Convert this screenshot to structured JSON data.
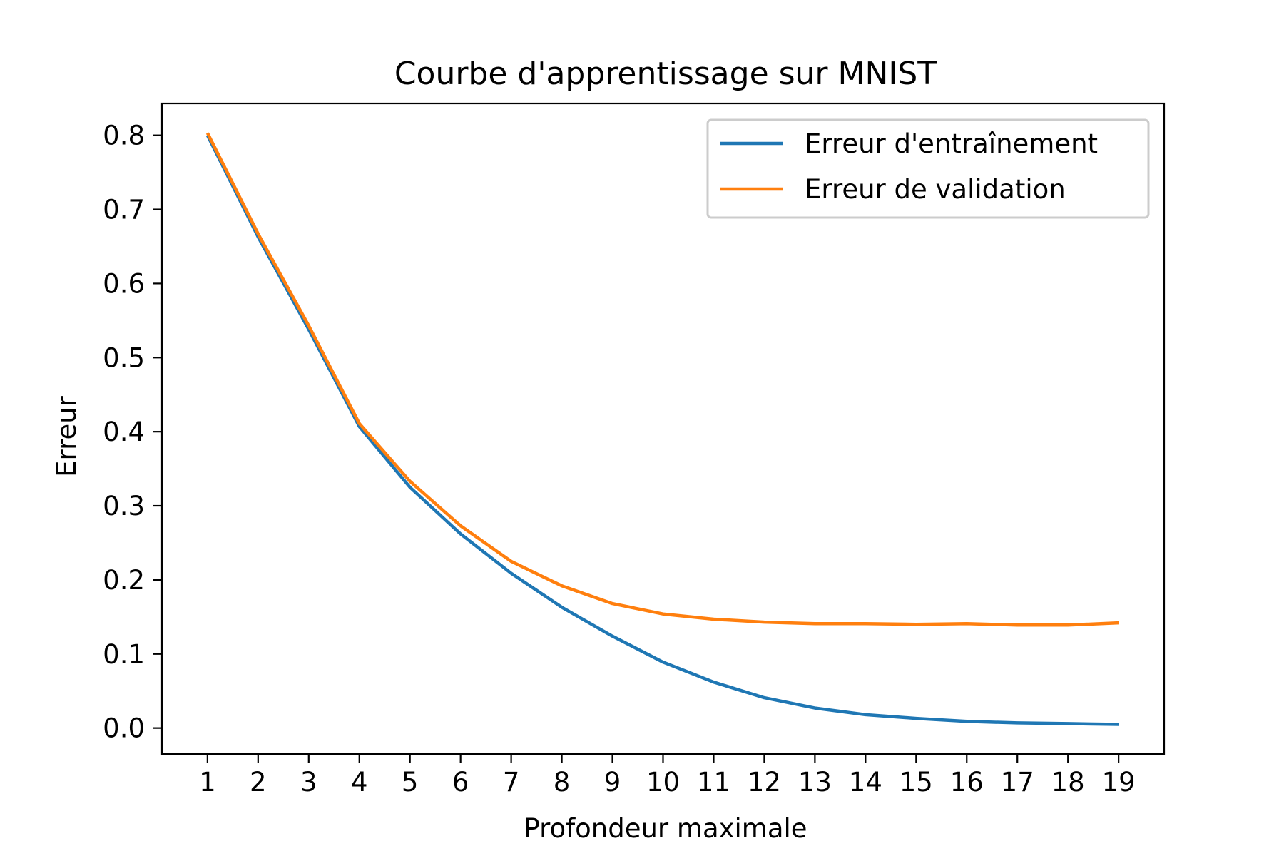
{
  "chart_data": {
    "type": "line",
    "title": "Courbe d'apprentissage sur MNIST",
    "xlabel": "Profondeur maximale",
    "ylabel": "Erreur",
    "x": [
      1,
      2,
      3,
      4,
      5,
      6,
      7,
      8,
      9,
      10,
      11,
      12,
      13,
      14,
      15,
      16,
      17,
      18,
      19
    ],
    "xlim": [
      0.1,
      19.9
    ],
    "ylim": [
      -0.035,
      0.843
    ],
    "xticks": [
      "1",
      "2",
      "3",
      "4",
      "5",
      "6",
      "7",
      "8",
      "9",
      "10",
      "11",
      "12",
      "13",
      "14",
      "15",
      "16",
      "17",
      "18",
      "19"
    ],
    "yticks": [
      "0.0",
      "0.1",
      "0.2",
      "0.3",
      "0.4",
      "0.5",
      "0.6",
      "0.7",
      "0.8"
    ],
    "grid": false,
    "legend_position": "top-right",
    "series": [
      {
        "name": "Erreur d'entraînement",
        "color": "#1f77b4",
        "values": [
          0.8,
          0.663,
          0.538,
          0.407,
          0.325,
          0.262,
          0.209,
          0.163,
          0.124,
          0.089,
          0.062,
          0.041,
          0.027,
          0.018,
          0.013,
          0.009,
          0.007,
          0.006,
          0.005
        ]
      },
      {
        "name": "Erreur de validation",
        "color": "#ff7f0e",
        "values": [
          0.803,
          0.667,
          0.543,
          0.411,
          0.333,
          0.273,
          0.225,
          0.192,
          0.168,
          0.154,
          0.147,
          0.143,
          0.141,
          0.141,
          0.14,
          0.141,
          0.139,
          0.139,
          0.142
        ]
      }
    ]
  }
}
